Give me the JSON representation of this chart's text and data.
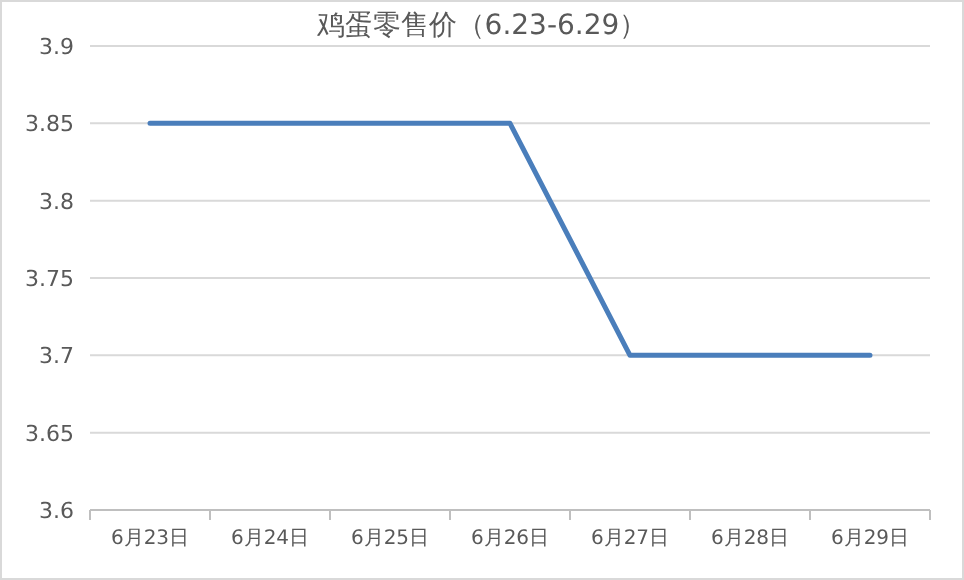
{
  "chart_data": {
    "type": "line",
    "title": "鸡蛋零售价（6.23-6.29）",
    "categories": [
      "6月23日",
      "6月24日",
      "6月25日",
      "6月26日",
      "6月27日",
      "6月28日",
      "6月29日"
    ],
    "series": [
      {
        "color": "#4a7ebb",
        "values": [
          3.85,
          3.85,
          3.85,
          3.85,
          3.7,
          3.7,
          3.7
        ]
      }
    ],
    "ylim": [
      3.6,
      3.9
    ],
    "yticks": [
      3.6,
      3.65,
      3.7,
      3.75,
      3.8,
      3.85,
      3.9
    ],
    "grid": "y",
    "marker": "none",
    "line_style": "solid"
  }
}
